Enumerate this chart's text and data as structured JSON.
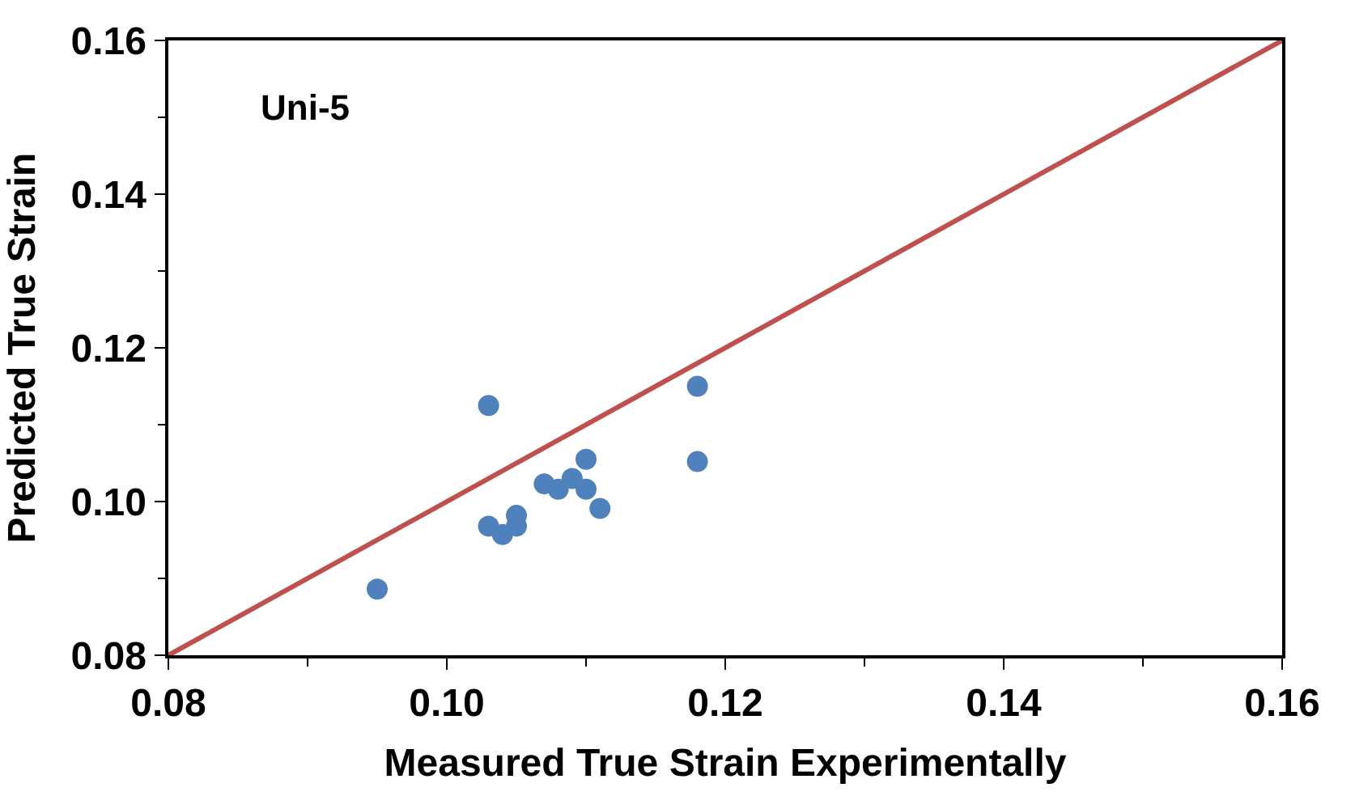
{
  "chart_data": {
    "type": "scatter",
    "xlabel": "Measured True Strain Experimentally",
    "ylabel": "Predicted True Strain",
    "annotations": [
      "Uni-5"
    ],
    "xlim": [
      0.08,
      0.16
    ],
    "ylim": [
      0.08,
      0.16
    ],
    "xticks": [
      {
        "value": 0.08,
        "label": "0.08"
      },
      {
        "value": 0.1,
        "label": "0.10"
      },
      {
        "value": 0.12,
        "label": "0.12"
      },
      {
        "value": 0.14,
        "label": "0.14"
      },
      {
        "value": 0.16,
        "label": "0.16"
      }
    ],
    "yticks": [
      {
        "value": 0.08,
        "label": "0.08"
      },
      {
        "value": 0.1,
        "label": "0.10"
      },
      {
        "value": 0.12,
        "label": "0.12"
      },
      {
        "value": 0.14,
        "label": "0.14"
      },
      {
        "value": 0.16,
        "label": "0.16"
      }
    ],
    "series": [
      {
        "color": "#4f81bd",
        "marker": "circle",
        "x": [
          0.095,
          0.103,
          0.103,
          0.104,
          0.105,
          0.105,
          0.107,
          0.108,
          0.109,
          0.11,
          0.11,
          0.111,
          0.118,
          0.118
        ],
        "values": [
          0.0886,
          0.1125,
          0.0968,
          0.0957,
          0.0982,
          0.0968,
          0.1023,
          0.1016,
          0.103,
          0.1055,
          0.1016,
          0.0991,
          0.115,
          0.1052
        ]
      },
      {
        "type": "line",
        "color": "#c0504d",
        "x": [
          0.08,
          0.16
        ],
        "values": [
          0.08,
          0.16
        ],
        "marker": "none",
        "line_style": "solid"
      }
    ]
  }
}
